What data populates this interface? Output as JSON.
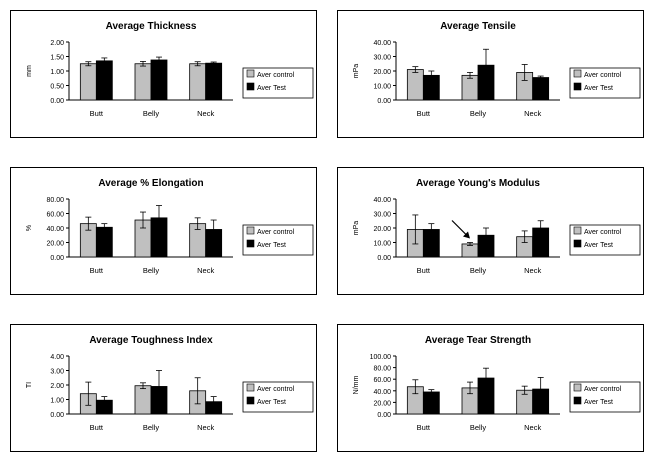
{
  "colors": {
    "control": "#c0c0c0",
    "test": "#000000"
  },
  "chart_data": [
    {
      "type": "bar",
      "title": "Average Thickness",
      "ylabel": "mm",
      "categories": [
        "Butt",
        "Belly",
        "Neck"
      ],
      "ylim": [
        0,
        2
      ],
      "ticks": [
        "0.00",
        "0.50",
        "1.00",
        "1.50",
        "2.00"
      ],
      "series": [
        {
          "name": "Aver control",
          "values": [
            1.25,
            1.25,
            1.25
          ],
          "errors": [
            0.07,
            0.08,
            0.07
          ]
        },
        {
          "name": "Aver Test",
          "values": [
            1.35,
            1.38,
            1.27
          ],
          "errors": [
            0.1,
            0.1,
            0.04
          ]
        }
      ],
      "legend": "right"
    },
    {
      "type": "bar",
      "title": "Average Tensile",
      "ylabel": "mPa",
      "categories": [
        "Butt",
        "Belly",
        "Neck"
      ],
      "ylim": [
        0,
        40
      ],
      "ticks": [
        "0.00",
        "10.00",
        "20.00",
        "30.00",
        "40.00"
      ],
      "series": [
        {
          "name": "Aver control",
          "values": [
            21,
            17,
            19
          ],
          "errors": [
            2,
            2,
            5.5
          ]
        },
        {
          "name": "Aver Test",
          "values": [
            17,
            24,
            15.5
          ],
          "errors": [
            3,
            11,
            1
          ]
        }
      ],
      "legend": "right"
    },
    {
      "type": "bar",
      "title": "Average % Elongation",
      "ylabel": "%",
      "categories": [
        "Butt",
        "Belly",
        "Neck"
      ],
      "ylim": [
        0,
        80
      ],
      "ticks": [
        "0.00",
        "20.00",
        "40.00",
        "60.00",
        "80.00"
      ],
      "series": [
        {
          "name": "Aver control",
          "values": [
            46,
            51,
            46
          ],
          "errors": [
            9,
            11,
            8
          ]
        },
        {
          "name": "Aver Test",
          "values": [
            41,
            54,
            38
          ],
          "errors": [
            5,
            17,
            13
          ]
        }
      ],
      "legend": "right"
    },
    {
      "type": "bar",
      "title": "Average Young's Modulus",
      "ylabel": "mPa",
      "categories": [
        "Butt",
        "Belly",
        "Neck"
      ],
      "ylim": [
        0,
        40
      ],
      "ticks": [
        "0.00",
        "10.00",
        "20.00",
        "30.00",
        "40.00"
      ],
      "series": [
        {
          "name": "Aver control",
          "values": [
            19,
            9,
            14
          ],
          "errors": [
            10,
            1,
            4
          ]
        },
        {
          "name": "Aver Test",
          "values": [
            19,
            15,
            20
          ],
          "errors": [
            4,
            5,
            5
          ]
        }
      ],
      "arrow_on": "Belly",
      "legend": "right"
    },
    {
      "type": "bar",
      "title": "Average Toughness Index",
      "ylabel": "TI",
      "categories": [
        "Butt",
        "Belly",
        "Neck"
      ],
      "ylim": [
        0,
        4
      ],
      "ticks": [
        "0.00",
        "1.00",
        "2.00",
        "3.00",
        "4.00"
      ],
      "series": [
        {
          "name": "Aver control",
          "values": [
            1.4,
            1.95,
            1.6
          ],
          "errors": [
            0.8,
            0.2,
            0.9
          ]
        },
        {
          "name": "Aver Test",
          "values": [
            0.95,
            1.9,
            0.85
          ],
          "errors": [
            0.25,
            1.1,
            0.35
          ]
        }
      ],
      "legend": "right"
    },
    {
      "type": "bar",
      "title": "Average Tear Strength",
      "ylabel": "N/mm",
      "categories": [
        "Butt",
        "Belly",
        "Neck"
      ],
      "ylim": [
        0,
        100
      ],
      "ticks": [
        "0.00",
        "20.00",
        "40.00",
        "60.00",
        "80.00",
        "100.00"
      ],
      "series": [
        {
          "name": "Aver control",
          "values": [
            47,
            45,
            41
          ],
          "errors": [
            12,
            10,
            7
          ]
        },
        {
          "name": "Aver Test",
          "values": [
            38,
            62,
            43
          ],
          "errors": [
            4,
            17,
            20
          ]
        }
      ],
      "legend": "right"
    }
  ]
}
